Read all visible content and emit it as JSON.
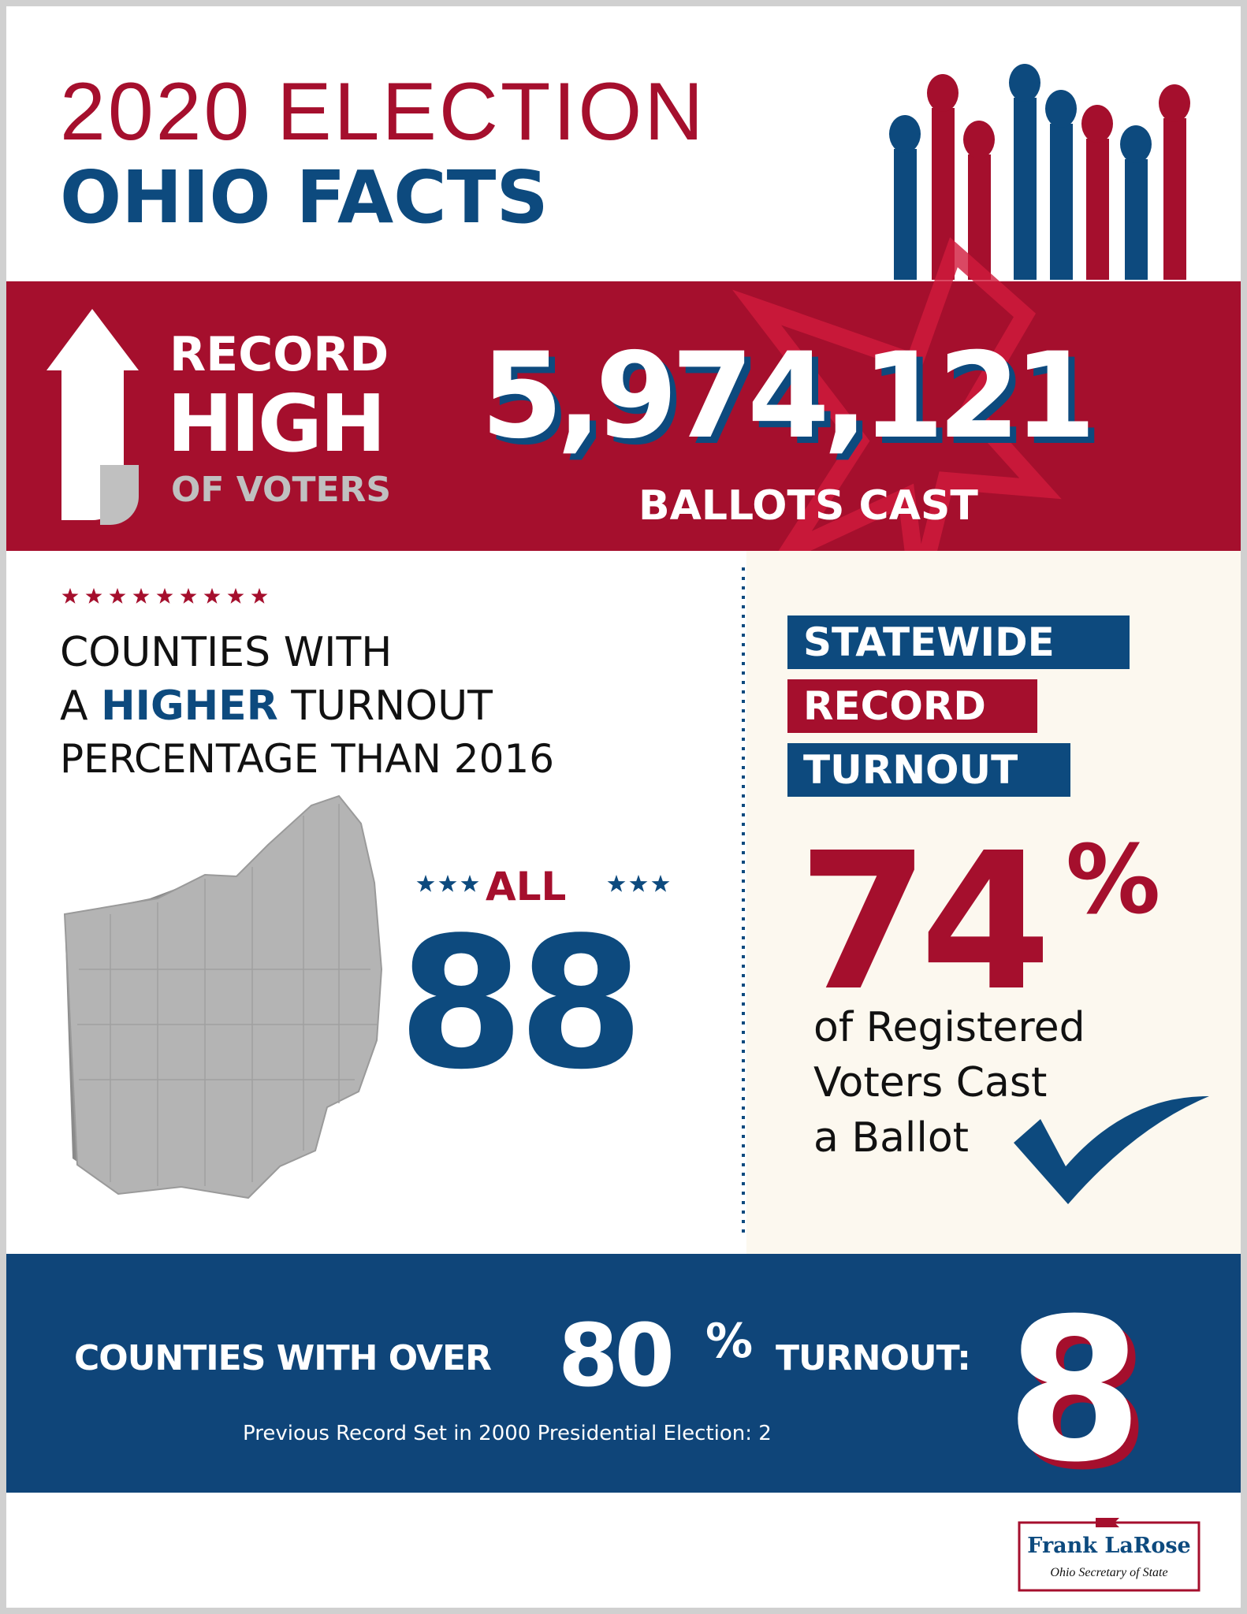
{
  "header": {
    "title_line1": "2020 ELECTION",
    "title_line2": "OHIO FACTS"
  },
  "banner": {
    "record": "RECORD",
    "high": "HIGH",
    "of_voters": "OF VOTERS",
    "ballots": "5,974,121",
    "ballots_label": "BALLOTS CAST"
  },
  "counties": {
    "line1": "COUNTIES WITH",
    "line2_a": "A",
    "line2_highlight": "HIGHER",
    "line2_b": "TURNOUT",
    "line3": "PERCENTAGE THAN 2016",
    "all": "ALL",
    "count": "88"
  },
  "turnout": {
    "tags": [
      "STATEWIDE",
      "RECORD",
      "TURNOUT"
    ],
    "percent": "74",
    "percent_sign": "%",
    "caption": [
      "of Registered",
      "Voters Cast",
      "a Ballot"
    ]
  },
  "footer_band": {
    "label": "COUNTIES WITH OVER",
    "threshold": "80",
    "threshold_sign": "%",
    "label_b": "TURNOUT:",
    "count": "8",
    "note": "Previous Record Set in 2000 Presidential Election: 2"
  },
  "logo": {
    "name": "Frank LaRose",
    "title": "Ohio Secretary of State"
  }
}
